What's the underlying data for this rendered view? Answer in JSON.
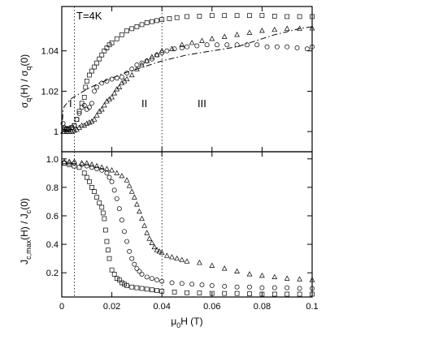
{
  "chart_data": [
    {
      "type": "scatter",
      "panel": "top",
      "annotation_temperature": "T=4K",
      "region_labels": [
        "I",
        "II",
        "III"
      ],
      "ylabel": {
        "sigma": "σ",
        "sub1": "q",
        "mid": "(H) / σ",
        "sub2": "q",
        "end": "(0)"
      },
      "xlim": [
        0,
        0.1
      ],
      "ylim": [
        0.99,
        1.062
      ],
      "yticks": [
        "1",
        "1.02",
        "1.04"
      ],
      "yticks_values": [
        1.0,
        1.02,
        1.04
      ],
      "series": [
        {
          "marker": "square",
          "x": [
            0.0008,
            0.0015,
            0.002,
            0.0025,
            0.003,
            0.004,
            0.005,
            0.006,
            0.007,
            0.008,
            0.009,
            0.0095,
            0.01,
            0.011,
            0.012,
            0.013,
            0.014,
            0.015,
            0.016,
            0.017,
            0.018,
            0.019,
            0.02,
            0.022,
            0.024,
            0.026,
            0.028,
            0.03,
            0.032,
            0.034,
            0.036,
            0.038,
            0.04,
            0.043,
            0.046,
            0.05,
            0.055,
            0.06,
            0.065,
            0.07,
            0.075,
            0.08,
            0.085,
            0.09,
            0.095,
            0.1
          ],
          "y": [
            1.001,
            1.0015,
            1.001,
            1.0012,
            1.0015,
            1.002,
            1.003,
            1.006,
            1.01,
            1.014,
            1.017,
            1.022,
            1.025,
            1.028,
            1.03,
            1.032,
            1.034,
            1.036,
            1.038,
            1.04,
            1.0415,
            1.043,
            1.044,
            1.046,
            1.048,
            1.05,
            1.051,
            1.052,
            1.053,
            1.054,
            1.0545,
            1.055,
            1.0555,
            1.056,
            1.0565,
            1.057,
            1.0572,
            1.0575,
            1.0575,
            1.0575,
            1.0575,
            1.0575,
            1.0572,
            1.057,
            1.057,
            1.057
          ]
        },
        {
          "marker": "circle",
          "x": [
            0.0005,
            0.001,
            0.002,
            0.003,
            0.004,
            0.005,
            0.006,
            0.007,
            0.008,
            0.009,
            0.01,
            0.011,
            0.012,
            0.013,
            0.014,
            0.016,
            0.018,
            0.02,
            0.022,
            0.024,
            0.026,
            0.028,
            0.03,
            0.032,
            0.034,
            0.036,
            0.038,
            0.04,
            0.042,
            0.045,
            0.048,
            0.05,
            0.054,
            0.058,
            0.062,
            0.066,
            0.07,
            0.074,
            0.078,
            0.082,
            0.086,
            0.09,
            0.094,
            0.098,
            0.1
          ],
          "y": [
            1.004,
            1.002,
            1.0015,
            1.001,
            1.002,
            1.003,
            1.006,
            1.009,
            1.012,
            1.013,
            1.011,
            1.012,
            1.014,
            1.02,
            1.022,
            1.024,
            1.025,
            1.026,
            1.0265,
            1.027,
            1.029,
            1.031,
            1.033,
            1.034,
            1.035,
            1.036,
            1.038,
            1.039,
            1.04,
            1.041,
            1.0415,
            1.042,
            1.0425,
            1.043,
            1.043,
            1.043,
            1.043,
            1.043,
            1.043,
            1.042,
            1.042,
            1.042,
            1.0415,
            1.041,
            1.042
          ]
        },
        {
          "marker": "triangle",
          "x": [
            0.0005,
            0.001,
            0.002,
            0.003,
            0.004,
            0.005,
            0.006,
            0.007,
            0.008,
            0.009,
            0.01,
            0.011,
            0.012,
            0.013,
            0.014,
            0.015,
            0.016,
            0.017,
            0.018,
            0.019,
            0.02,
            0.021,
            0.022,
            0.023,
            0.024,
            0.025,
            0.026,
            0.028,
            0.03,
            0.032,
            0.034,
            0.036,
            0.038,
            0.04,
            0.044,
            0.048,
            0.052,
            0.056,
            0.06,
            0.065,
            0.07,
            0.075,
            0.08,
            0.085,
            0.09,
            0.095,
            0.1
          ],
          "y": [
            1.0,
            1.0,
            1.0,
            1.0,
            1.0,
            1.0005,
            1.001,
            1.002,
            1.003,
            1.003,
            1.004,
            1.0045,
            1.005,
            1.006,
            1.008,
            1.01,
            1.011,
            1.013,
            1.015,
            1.016,
            1.017,
            1.019,
            1.021,
            1.022,
            1.024,
            1.025,
            1.026,
            1.028,
            1.031,
            1.033,
            1.035,
            1.037,
            1.038,
            1.04,
            1.041,
            1.043,
            1.044,
            1.045,
            1.046,
            1.047,
            1.048,
            1.049,
            1.05,
            1.0505,
            1.051,
            1.051,
            1.0512
          ]
        }
      ],
      "dashdot_curve": {
        "x": [
          0.0,
          0.0005,
          0.001,
          0.002,
          0.004,
          0.006,
          0.01,
          0.015,
          0.02,
          0.025,
          0.03,
          0.035,
          0.04,
          0.045,
          0.05,
          0.055,
          0.06,
          0.065,
          0.07,
          0.075,
          0.08,
          0.085,
          0.09,
          0.095,
          0.1
        ],
        "y": [
          1.0,
          1.01,
          1.0125,
          1.014,
          1.0165,
          1.018,
          1.021,
          1.024,
          1.0265,
          1.029,
          1.031,
          1.033,
          1.035,
          1.0365,
          1.038,
          1.039,
          1.04,
          1.041,
          1.042,
          1.044,
          1.046,
          1.048,
          1.0495,
          1.051,
          1.052
        ]
      },
      "guide_lines_x": [
        0.005,
        0.04
      ]
    },
    {
      "type": "scatter",
      "panel": "bottom",
      "xlabel": {
        "mu": "μ",
        "sub": "0",
        "rest": "H  (T)"
      },
      "ylabel": {
        "J": "J",
        "sub1": "c,max",
        "mid": "(H) / J",
        "sub2": "c",
        "end": "(0)"
      },
      "xlim": [
        0,
        0.1
      ],
      "ylim": [
        0.03,
        1.05
      ],
      "xticks": [
        "0",
        "0.02",
        "0.04",
        "0.06",
        "0.08",
        "0.1"
      ],
      "xticks_values": [
        0.0,
        0.02,
        0.04,
        0.06,
        0.08,
        0.1
      ],
      "yticks": [
        "0.2",
        "0.4",
        "0.6",
        "0.8",
        "1.0"
      ],
      "yticks_values": [
        0.2,
        0.4,
        0.6,
        0.8,
        1.0
      ],
      "series": [
        {
          "marker": "square",
          "x": [
            0.001,
            0.003,
            0.005,
            0.007,
            0.009,
            0.01,
            0.011,
            0.012,
            0.013,
            0.014,
            0.015,
            0.016,
            0.0165,
            0.017,
            0.0175,
            0.018,
            0.0185,
            0.019,
            0.02,
            0.021,
            0.022,
            0.023,
            0.024,
            0.025,
            0.026,
            0.028,
            0.03,
            0.032,
            0.034,
            0.036,
            0.038,
            0.04,
            0.045,
            0.05,
            0.055,
            0.06,
            0.065,
            0.07,
            0.075,
            0.08,
            0.085,
            0.09,
            0.095,
            0.1
          ],
          "y": [
            0.97,
            0.96,
            0.95,
            0.94,
            0.9,
            0.87,
            0.84,
            0.8,
            0.77,
            0.73,
            0.69,
            0.66,
            0.62,
            0.58,
            0.5,
            0.42,
            0.36,
            0.3,
            0.22,
            0.19,
            0.16,
            0.15,
            0.13,
            0.12,
            0.11,
            0.1,
            0.095,
            0.09,
            0.085,
            0.08,
            0.075,
            0.07,
            0.065,
            0.06,
            0.058,
            0.055,
            0.055,
            0.055,
            0.052,
            0.05,
            0.05,
            0.05,
            0.05,
            0.05
          ]
        },
        {
          "marker": "circle",
          "x": [
            0.001,
            0.003,
            0.005,
            0.008,
            0.01,
            0.012,
            0.014,
            0.016,
            0.018,
            0.019,
            0.02,
            0.021,
            0.022,
            0.023,
            0.024,
            0.025,
            0.026,
            0.027,
            0.028,
            0.029,
            0.03,
            0.031,
            0.032,
            0.034,
            0.036,
            0.038,
            0.04,
            0.044,
            0.048,
            0.052,
            0.056,
            0.06,
            0.065,
            0.07,
            0.075,
            0.08,
            0.085,
            0.09,
            0.095,
            0.1
          ],
          "y": [
            0.97,
            0.97,
            0.97,
            0.96,
            0.95,
            0.94,
            0.93,
            0.92,
            0.9,
            0.87,
            0.84,
            0.78,
            0.72,
            0.65,
            0.57,
            0.49,
            0.42,
            0.35,
            0.3,
            0.26,
            0.23,
            0.21,
            0.19,
            0.17,
            0.16,
            0.15,
            0.14,
            0.13,
            0.125,
            0.12,
            0.115,
            0.11,
            0.105,
            0.1,
            0.1,
            0.095,
            0.095,
            0.095,
            0.09,
            0.09
          ]
        },
        {
          "marker": "triangle",
          "x": [
            0.001,
            0.003,
            0.005,
            0.008,
            0.01,
            0.012,
            0.014,
            0.016,
            0.018,
            0.02,
            0.022,
            0.024,
            0.026,
            0.027,
            0.028,
            0.029,
            0.03,
            0.031,
            0.032,
            0.033,
            0.034,
            0.035,
            0.036,
            0.037,
            0.038,
            0.039,
            0.04,
            0.042,
            0.044,
            0.046,
            0.048,
            0.05,
            0.055,
            0.06,
            0.065,
            0.07,
            0.075,
            0.08,
            0.085,
            0.09,
            0.095,
            0.1
          ],
          "y": [
            0.98,
            0.98,
            0.98,
            0.97,
            0.97,
            0.96,
            0.95,
            0.94,
            0.93,
            0.92,
            0.9,
            0.88,
            0.85,
            0.81,
            0.77,
            0.73,
            0.68,
            0.63,
            0.58,
            0.53,
            0.48,
            0.44,
            0.41,
            0.38,
            0.36,
            0.35,
            0.34,
            0.32,
            0.31,
            0.3,
            0.29,
            0.28,
            0.27,
            0.25,
            0.23,
            0.21,
            0.19,
            0.18,
            0.17,
            0.16,
            0.155,
            0.15
          ]
        }
      ],
      "guide_lines_x": [
        0.005,
        0.04
      ]
    }
  ]
}
